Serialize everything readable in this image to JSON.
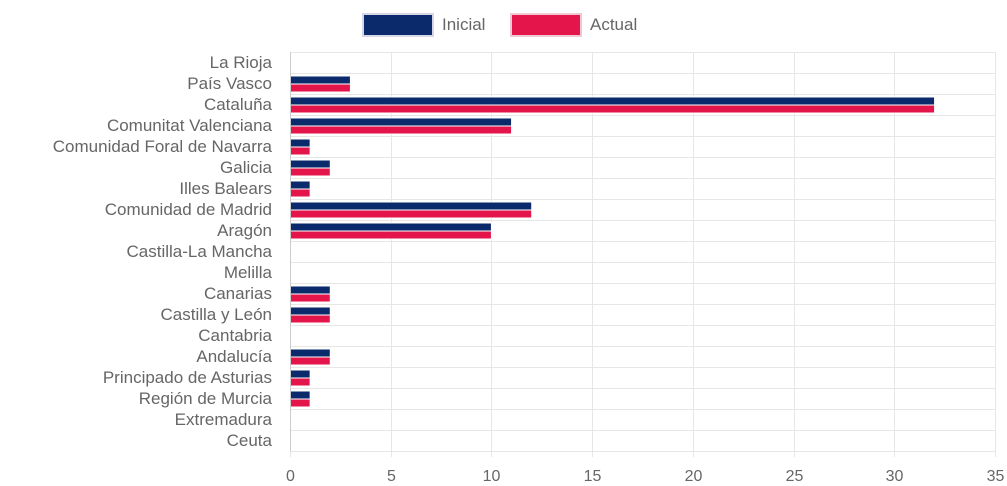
{
  "chart_data": {
    "type": "bar",
    "orientation": "horizontal",
    "categories": [
      "La Rioja",
      "País Vasco",
      "Cataluña",
      "Comunitat Valenciana",
      "Comunidad Foral de Navarra",
      "Galicia",
      "Illes Balears",
      "Comunidad de Madrid",
      "Aragón",
      "Castilla-La Mancha",
      "Melilla",
      "Canarias",
      "Castilla y León",
      "Cantabria",
      "Andalucía",
      "Principado de Asturias",
      "Región de Murcia",
      "Extremadura",
      "Ceuta"
    ],
    "series": [
      {
        "name": "Inicial",
        "color": "#0a2a6b",
        "values": [
          0,
          3,
          32,
          11,
          1,
          2,
          1,
          12,
          10,
          0,
          0,
          2,
          2,
          0,
          2,
          1,
          1,
          0,
          0
        ]
      },
      {
        "name": "Actual",
        "color": "#e3154a",
        "values": [
          0,
          3,
          32,
          11,
          1,
          2,
          1,
          12,
          10,
          0,
          0,
          2,
          2,
          0,
          2,
          1,
          1,
          0,
          0
        ]
      }
    ],
    "xlim": [
      0,
      35
    ],
    "xticks": [
      "0",
      "5",
      "10",
      "15",
      "20",
      "25",
      "30",
      "35"
    ],
    "grid": true,
    "legend_position": "top"
  }
}
